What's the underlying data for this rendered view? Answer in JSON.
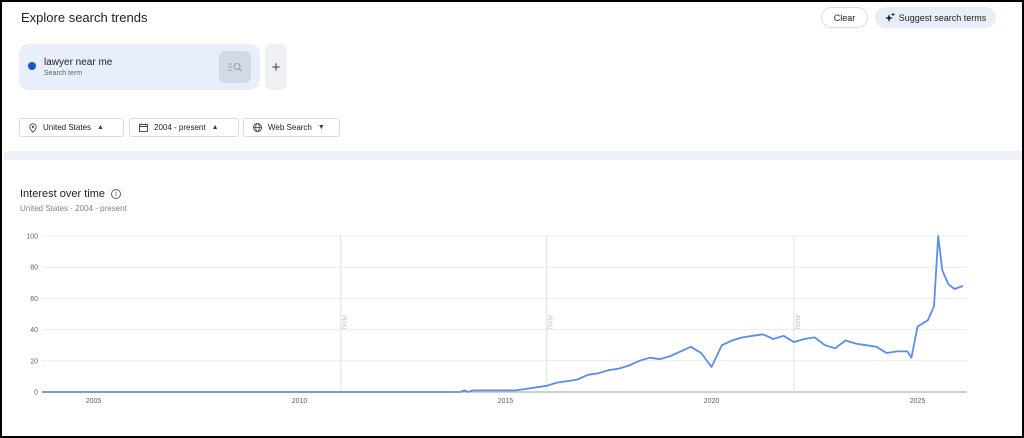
{
  "header": {
    "title": "Explore search trends",
    "clear_label": "Clear",
    "suggest_label": "Suggest search terms",
    "suggest_icon": "sparkle-plus-icon"
  },
  "search_terms": [
    {
      "term": "lawyer near me",
      "type": "Search term",
      "color": "#1a56c8",
      "edit_icon": "edit-search-icon"
    }
  ],
  "add_term_label": "+",
  "filters": {
    "location": {
      "label": "United States",
      "icon": "location-pin-icon"
    },
    "time_range": {
      "label": "2004 - present",
      "icon": "calendar-icon"
    },
    "property": {
      "label": "Web Search",
      "icon": "globe-icon"
    }
  },
  "chart_panel": {
    "title": "Interest over time",
    "subtitle_location": "United States",
    "subtitle_separator": "·",
    "subtitle_range": "2004 - present",
    "info_icon": "info-icon"
  },
  "chart_data": {
    "type": "line",
    "title": "Interest over time",
    "xlabel": "",
    "ylabel": "",
    "ylim": [
      0,
      100
    ],
    "xlim": [
      2003.75,
      2026.2
    ],
    "yticks": [
      0,
      20,
      40,
      60,
      80,
      100
    ],
    "xticks": [
      "2005",
      "2010",
      "2015",
      "2020",
      "2025"
    ],
    "xtick_values": [
      2005,
      2010,
      2015,
      2020,
      2025
    ],
    "grid": true,
    "line_color": "#5b8dee",
    "notes": [
      {
        "x": 2011.0,
        "label": "Note"
      },
      {
        "x": 2016.0,
        "label": "Note"
      },
      {
        "x": 2022.0,
        "label": "Note"
      }
    ],
    "series": [
      {
        "name": "lawyer near me",
        "x": [
          2003.75,
          2013.9,
          2014.0,
          2014.1,
          2014.2,
          2014.5,
          2015.0,
          2015.25,
          2015.5,
          2015.75,
          2016.0,
          2016.25,
          2016.5,
          2016.75,
          2017.0,
          2017.25,
          2017.5,
          2017.75,
          2018.0,
          2018.25,
          2018.5,
          2018.75,
          2019.0,
          2019.25,
          2019.5,
          2019.75,
          2020.0,
          2020.25,
          2020.5,
          2020.75,
          2021.0,
          2021.25,
          2021.5,
          2021.75,
          2022.0,
          2022.25,
          2022.5,
          2022.75,
          2023.0,
          2023.25,
          2023.5,
          2023.75,
          2024.0,
          2024.25,
          2024.5,
          2024.75,
          2024.85,
          2025.0,
          2025.25,
          2025.4,
          2025.5,
          2025.6,
          2025.75,
          2025.9,
          2026.1
        ],
        "y": [
          0,
          0,
          1,
          0,
          1,
          1,
          1,
          1,
          2,
          3,
          4,
          6,
          7,
          8,
          11,
          12,
          14,
          15,
          17,
          20,
          22,
          21,
          23,
          26,
          29,
          25,
          16,
          30,
          33,
          35,
          36,
          37,
          34,
          36,
          32,
          34,
          35,
          30,
          28,
          33,
          31,
          30,
          29,
          25,
          26,
          26,
          22,
          42,
          46,
          55,
          100,
          78,
          69,
          66,
          68
        ]
      }
    ]
  }
}
